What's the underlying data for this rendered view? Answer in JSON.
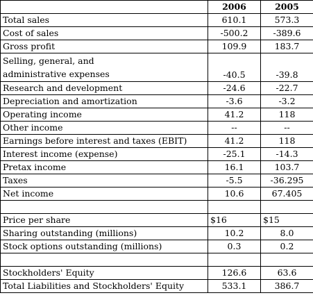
{
  "table": {
    "header": {
      "label": "",
      "col1": "2006",
      "col2": "2005"
    },
    "rows": {
      "total_sales": {
        "label": "Total sales",
        "v2006": "610.1",
        "v2005": "573.3"
      },
      "cost_of_sales": {
        "label": "Cost of sales",
        "v2006": "-500.2",
        "v2005": "-389.6"
      },
      "gross_profit": {
        "label": "Gross profit",
        "v2006": "109.9",
        "v2005": "183.7"
      },
      "sga": {
        "label_line1": "Selling, general, and",
        "label_line2": "administrative expenses",
        "v2006": "-40.5",
        "v2005": "-39.8"
      },
      "rnd": {
        "label": "Research and development",
        "v2006": "-24.6",
        "v2005": "-22.7"
      },
      "dna": {
        "label": "Depreciation and amortization",
        "v2006": "-3.6",
        "v2005": "-3.2"
      },
      "operating_income": {
        "label": "Operating income",
        "v2006": "41.2",
        "v2005": "118"
      },
      "other_income": {
        "label": "Other income",
        "v2006": "--",
        "v2005": "--"
      },
      "ebit": {
        "label": "Earnings before interest and taxes (EBIT)",
        "v2006": "41.2",
        "v2005": "118"
      },
      "interest": {
        "label": "Interest income (expense)",
        "v2006": "-25.1",
        "v2005": "-14.3"
      },
      "pretax": {
        "label": "Pretax income",
        "v2006": "16.1",
        "v2005": "103.7"
      },
      "taxes": {
        "label": "Taxes",
        "v2006": "-5.5",
        "v2005": "-36.295"
      },
      "net_income": {
        "label": "Net income",
        "v2006": "10.6",
        "v2005": "67.405"
      },
      "price_per_share": {
        "label": "Price per share",
        "v2006": "$16",
        "v2005": "$15"
      },
      "sharing_outstanding": {
        "label": "Sharing outstanding (millions)",
        "v2006": "10.2",
        "v2005": "8.0"
      },
      "stock_options": {
        "label": "Stock options outstanding (millions)",
        "v2006": "0.3",
        "v2005": "0.2"
      },
      "stockholders_equity": {
        "label": "Stockholders' Equity",
        "v2006": "126.6",
        "v2005": "63.6"
      },
      "total_liabilities_equity": {
        "label": "Total Liabilities and Stockholders' Equity",
        "v2006": "533.1",
        "v2005": "386.7"
      }
    }
  }
}
